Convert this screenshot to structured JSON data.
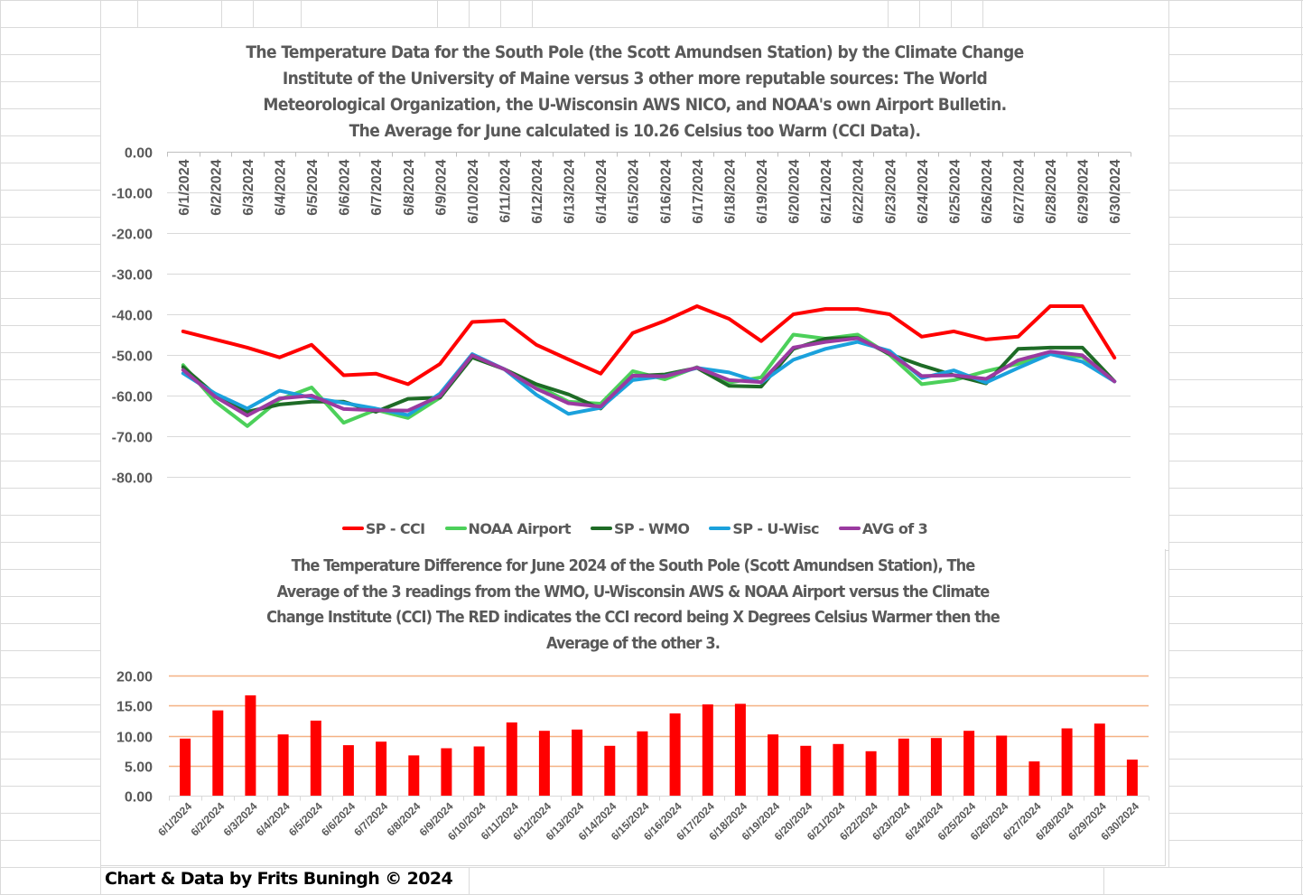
{
  "footer": "Chart & Data by Frits Buningh © 2024",
  "chart_data": [
    {
      "type": "line",
      "title_lines": [
        "The Temperature Data for the South Pole (the Scott Amundsen Station) by the Climate Change",
        "Institute of the University of Maine versus 3 other more reputable sources: The World",
        "Meteorological Organization, the U-Wisconsin AWS NICO, and NOAA's own Airport Bulletin.",
        "The Average for June calculated is 10.26 Celsius too Warm (CCI Data)."
      ],
      "xlabel": "",
      "ylabel": "",
      "ylim": [
        -80,
        0
      ],
      "y_ticks": [
        0,
        -10,
        -20,
        -30,
        -40,
        -50,
        -60,
        -70,
        -80
      ],
      "y_tick_labels": [
        "0.00",
        "-10.00",
        "-20.00",
        "-30.00",
        "-40.00",
        "-50.00",
        "-60.00",
        "-70.00",
        "-80.00"
      ],
      "x_axis_position": "top",
      "grid": true,
      "legend_position": "bottom",
      "categories": [
        "6/1/2024",
        "6/2/2024",
        "6/3/2024",
        "6/4/2024",
        "6/5/2024",
        "6/6/2024",
        "6/7/2024",
        "6/8/2024",
        "6/9/2024",
        "6/10/2024",
        "6/11/2024",
        "6/12/2024",
        "6/13/2024",
        "6/14/2024",
        "6/15/2024",
        "6/16/2024",
        "6/17/2024",
        "6/18/2024",
        "6/19/2024",
        "6/20/2024",
        "6/21/2024",
        "6/22/2024",
        "6/23/2024",
        "6/24/2024",
        "6/25/2024",
        "6/26/2024",
        "6/27/2024",
        "6/28/2024",
        "6/29/2024",
        "6/30/2024"
      ],
      "series": [
        {
          "name": "SP - CCI",
          "color": "#FF0000",
          "values": [
            -44.2,
            -46.2,
            -48.2,
            -50.6,
            -47.5,
            -55.0,
            -54.6,
            -57.2,
            -52.2,
            -41.9,
            -41.5,
            -47.5,
            -51.1,
            -54.6,
            -44.6,
            -41.6,
            -38.0,
            -41.1,
            -46.6,
            -40.0,
            -38.7,
            -38.7,
            -40.0,
            -45.5,
            -44.2,
            -46.2,
            -45.5,
            -38.0,
            -38.0,
            -50.7
          ]
        },
        {
          "name": "NOAA Airport",
          "color": "#4CD05A",
          "values": [
            -52.5,
            -61.5,
            -67.5,
            -61.0,
            -58.0,
            -66.7,
            -63.5,
            -65.5,
            -60.5,
            -50.0,
            -53.5,
            -57.5,
            -61.5,
            -62.0,
            -54.0,
            -56.0,
            -53.0,
            -56.8,
            -55.5,
            -45.0,
            -46.0,
            -45.0,
            -50.0,
            -57.2,
            -56.2,
            -54.0,
            -52.2,
            -49.7,
            -50.5,
            -56.5
          ]
        },
        {
          "name": "SP - WMO",
          "color": "#1E6B26",
          "values": [
            -53.0,
            -59.8,
            -64.0,
            -62.2,
            -61.5,
            -61.5,
            -64.0,
            -60.8,
            -60.5,
            -50.6,
            -53.5,
            -57.2,
            -59.7,
            -63.2,
            -55.2,
            -54.8,
            -53.2,
            -57.6,
            -57.8,
            -48.5,
            -46.0,
            -45.8,
            -49.8,
            -52.6,
            -55.0,
            -57.0,
            -48.5,
            -48.2,
            -48.2,
            -56.5
          ]
        },
        {
          "name": "SP - U-Wisc",
          "color": "#1BA1DC",
          "values": [
            -54.5,
            -59.5,
            -63.2,
            -58.8,
            -60.5,
            -61.8,
            -63.2,
            -64.8,
            -59.5,
            -49.8,
            -53.5,
            -59.8,
            -64.5,
            -63.0,
            -56.2,
            -55.2,
            -53.2,
            -54.3,
            -56.8,
            -51.2,
            -48.5,
            -46.8,
            -49.0,
            -55.7,
            -53.8,
            -56.8,
            -53.2,
            -49.8,
            -51.7,
            -56.5
          ]
        },
        {
          "name": "AVG of 3",
          "color": "#9A3AA0",
          "values": [
            -53.7,
            -60.3,
            -64.9,
            -60.7,
            -60.0,
            -63.3,
            -63.6,
            -63.7,
            -60.1,
            -50.1,
            -53.5,
            -58.3,
            -61.9,
            -62.7,
            -55.1,
            -55.3,
            -53.1,
            -56.2,
            -56.7,
            -48.2,
            -46.8,
            -45.9,
            -49.6,
            -55.2,
            -55.0,
            -55.9,
            -51.3,
            -49.2,
            -50.1,
            -56.5
          ]
        }
      ]
    },
    {
      "type": "bar",
      "title_lines": [
        "The Temperature Difference for June 2024 of the South Pole (Scott Amundsen Station), The",
        "Average of the 3 readings from the WMO, U-Wisconsin AWS & NOAA Airport versus the Climate",
        "Change Institute (CCI) The RED indicates the CCI record being X Degrees Celsius Warmer then the",
        "Average of the other 3."
      ],
      "xlabel": "",
      "ylabel": "",
      "ylim": [
        0,
        20
      ],
      "y_ticks": [
        0,
        5,
        10,
        15,
        20
      ],
      "y_tick_labels": [
        "0.00",
        "5.00",
        "10.00",
        "15.00",
        "20.00"
      ],
      "grid": true,
      "grid_color": "#F4B183",
      "bar_color": "#FF0000",
      "categories": [
        "6/1/2024",
        "6/2/2024",
        "6/3/2024",
        "6/4/2024",
        "6/5/2024",
        "6/6/2024",
        "6/7/2024",
        "6/8/2024",
        "6/9/2024",
        "6/10/2024",
        "6/11/2024",
        "6/12/2024",
        "6/13/2024",
        "6/14/2024",
        "6/15/2024",
        "6/16/2024",
        "6/17/2024",
        "6/18/2024",
        "6/19/2024",
        "6/20/2024",
        "6/21/2024",
        "6/22/2024",
        "6/23/2024",
        "6/24/2024",
        "6/25/2024",
        "6/26/2024",
        "6/27/2024",
        "6/28/2024",
        "6/29/2024",
        "6/30/2024"
      ],
      "values": [
        9.5,
        14.2,
        16.7,
        10.2,
        12.5,
        8.4,
        9.0,
        6.7,
        7.9,
        8.2,
        12.2,
        10.8,
        11.0,
        8.3,
        10.7,
        13.7,
        15.2,
        15.3,
        10.2,
        8.3,
        8.6,
        7.4,
        9.5,
        9.6,
        10.8,
        10.0,
        5.7,
        11.2,
        12.0,
        6.0
      ]
    }
  ]
}
